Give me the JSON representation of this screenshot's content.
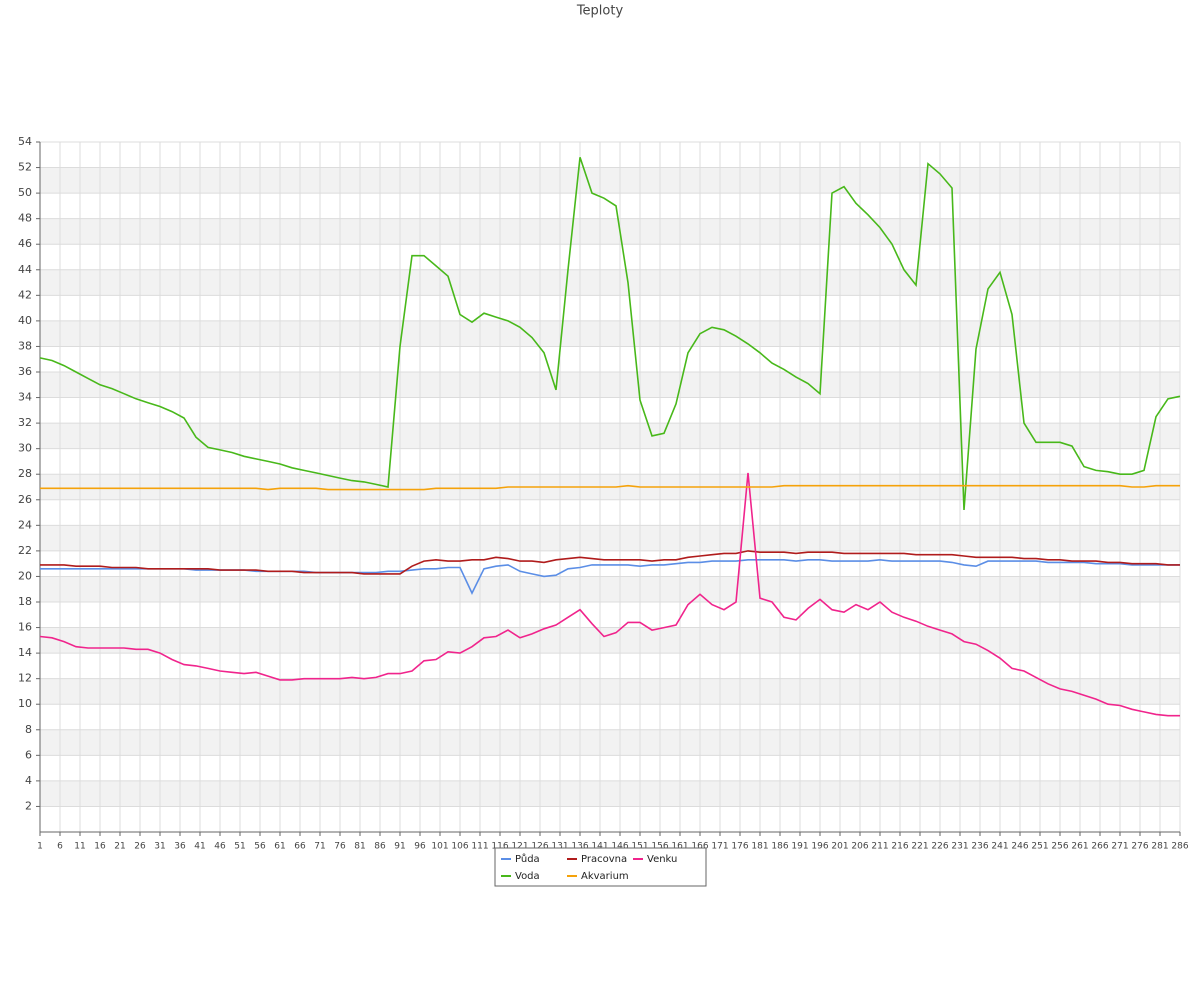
{
  "chart_data": {
    "type": "line",
    "title": "Teploty",
    "x": [
      1,
      4,
      7,
      10,
      13,
      16,
      19,
      22,
      25,
      28,
      31,
      34,
      37,
      40,
      43,
      46,
      49,
      52,
      55,
      58,
      61,
      64,
      67,
      70,
      73,
      76,
      79,
      82,
      85,
      88,
      91,
      94,
      97,
      100,
      103,
      106,
      109,
      112,
      115,
      118,
      121,
      124,
      127,
      130,
      133,
      136,
      139,
      142,
      145,
      148,
      151,
      154,
      157,
      160,
      163,
      166,
      169,
      172,
      175,
      178,
      181,
      184,
      187,
      190,
      193,
      196,
      199,
      202,
      205,
      208,
      211,
      214,
      217,
      220,
      223,
      226,
      229,
      232,
      235,
      238,
      241,
      244,
      247,
      250,
      253,
      256,
      259,
      262,
      265,
      268,
      271,
      274,
      277,
      280,
      283,
      286
    ],
    "xlim": [
      1,
      286
    ],
    "xticks": [
      1,
      6,
      11,
      16,
      21,
      26,
      31,
      36,
      41,
      46,
      51,
      56,
      61,
      66,
      71,
      76,
      81,
      86,
      91,
      96,
      101,
      106,
      111,
      116,
      121,
      126,
      131,
      136,
      141,
      146,
      151,
      156,
      161,
      166,
      171,
      176,
      181,
      186,
      191,
      196,
      201,
      206,
      211,
      216,
      221,
      226,
      231,
      236,
      241,
      246,
      251,
      256,
      261,
      266,
      271,
      276,
      281,
      286
    ],
    "ylim": [
      0,
      54
    ],
    "yticks": [
      2,
      4,
      6,
      8,
      10,
      12,
      14,
      16,
      18,
      20,
      22,
      24,
      26,
      28,
      30,
      32,
      34,
      36,
      38,
      40,
      42,
      44,
      46,
      48,
      50,
      52,
      54
    ],
    "grid": true,
    "series": [
      {
        "name": "Půda",
        "color": "#5b8ee6",
        "values": [
          20.6,
          20.6,
          20.6,
          20.6,
          20.6,
          20.6,
          20.6,
          20.6,
          20.6,
          20.6,
          20.6,
          20.6,
          20.6,
          20.5,
          20.5,
          20.5,
          20.5,
          20.5,
          20.4,
          20.4,
          20.4,
          20.4,
          20.4,
          20.3,
          20.3,
          20.3,
          20.3,
          20.3,
          20.3,
          20.4,
          20.4,
          20.5,
          20.6,
          20.6,
          20.7,
          20.7,
          18.7,
          20.6,
          20.8,
          20.9,
          20.4,
          20.2,
          20.0,
          20.1,
          20.6,
          20.7,
          20.9,
          20.9,
          20.9,
          20.9,
          20.8,
          20.9,
          20.9,
          21.0,
          21.1,
          21.1,
          21.2,
          21.2,
          21.2,
          21.3,
          21.3,
          21.3,
          21.3,
          21.2,
          21.3,
          21.3,
          21.2,
          21.2,
          21.2,
          21.2,
          21.3,
          21.2,
          21.2,
          21.2,
          21.2,
          21.2,
          21.1,
          20.9,
          20.8,
          21.2,
          21.2,
          21.2,
          21.2,
          21.2,
          21.1,
          21.1,
          21.1,
          21.1,
          21.0,
          21.0,
          21.0,
          20.9,
          20.9,
          20.9,
          20.9,
          20.9
        ]
      },
      {
        "name": "Pracovna",
        "color": "#b01c1c",
        "values": [
          20.9,
          20.9,
          20.9,
          20.8,
          20.8,
          20.8,
          20.7,
          20.7,
          20.7,
          20.6,
          20.6,
          20.6,
          20.6,
          20.6,
          20.6,
          20.5,
          20.5,
          20.5,
          20.5,
          20.4,
          20.4,
          20.4,
          20.3,
          20.3,
          20.3,
          20.3,
          20.3,
          20.2,
          20.2,
          20.2,
          20.2,
          20.8,
          21.2,
          21.3,
          21.2,
          21.2,
          21.3,
          21.3,
          21.5,
          21.4,
          21.2,
          21.2,
          21.1,
          21.3,
          21.4,
          21.5,
          21.4,
          21.3,
          21.3,
          21.3,
          21.3,
          21.2,
          21.3,
          21.3,
          21.5,
          21.6,
          21.7,
          21.8,
          21.8,
          22.0,
          21.9,
          21.9,
          21.9,
          21.8,
          21.9,
          21.9,
          21.9,
          21.8,
          21.8,
          21.8,
          21.8,
          21.8,
          21.8,
          21.7,
          21.7,
          21.7,
          21.7,
          21.6,
          21.5,
          21.5,
          21.5,
          21.5,
          21.4,
          21.4,
          21.3,
          21.3,
          21.2,
          21.2,
          21.2,
          21.1,
          21.1,
          21.0,
          21.0,
          21.0,
          20.9,
          20.9
        ]
      },
      {
        "name": "Venku",
        "color": "#f0248c",
        "values": [
          15.3,
          15.2,
          14.9,
          14.5,
          14.4,
          14.4,
          14.4,
          14.4,
          14.3,
          14.3,
          14.0,
          13.5,
          13.1,
          13.0,
          12.8,
          12.6,
          12.5,
          12.4,
          12.5,
          12.2,
          11.9,
          11.9,
          12.0,
          12.0,
          12.0,
          12.0,
          12.1,
          12.0,
          12.1,
          12.4,
          12.4,
          12.6,
          13.4,
          13.5,
          14.1,
          14.0,
          14.5,
          15.2,
          15.3,
          15.8,
          15.2,
          15.5,
          15.9,
          16.2,
          16.8,
          17.4,
          16.3,
          15.3,
          15.6,
          16.4,
          16.4,
          15.8,
          16.0,
          16.2,
          17.8,
          18.6,
          17.8,
          17.4,
          18.0,
          28.1,
          18.3,
          18.0,
          16.8,
          16.6,
          17.5,
          18.2,
          17.4,
          17.2,
          17.8,
          17.4,
          18.0,
          17.2,
          16.8,
          16.5,
          16.1,
          15.8,
          15.5,
          14.9,
          14.7,
          14.2,
          13.6,
          12.8,
          12.6,
          12.1,
          11.6,
          11.2,
          11.0,
          10.7,
          10.4,
          10.0,
          9.9,
          9.6,
          9.4,
          9.2,
          9.1,
          9.1
        ]
      },
      {
        "name": "Voda",
        "color": "#48b81a",
        "values": [
          37.1,
          36.9,
          36.5,
          36.0,
          35.5,
          35.0,
          34.7,
          34.3,
          33.9,
          33.6,
          33.3,
          32.9,
          32.4,
          30.9,
          30.1,
          29.9,
          29.7,
          29.4,
          29.2,
          29.0,
          28.8,
          28.5,
          28.3,
          28.1,
          27.9,
          27.7,
          27.5,
          27.4,
          27.2,
          27.0,
          38.0,
          45.1,
          45.1,
          44.3,
          43.5,
          40.5,
          39.9,
          40.6,
          40.3,
          40.0,
          39.5,
          38.7,
          37.5,
          34.6,
          44.0,
          52.8,
          50.0,
          49.6,
          49.0,
          43.0,
          33.8,
          31.0,
          31.2,
          33.5,
          37.5,
          39.0,
          39.5,
          39.3,
          38.8,
          38.2,
          37.5,
          36.7,
          36.2,
          35.6,
          35.1,
          34.3,
          50.0,
          50.5,
          49.2,
          48.3,
          47.3,
          46.0,
          44.0,
          42.8,
          52.3,
          51.5,
          50.4,
          25.2,
          37.8,
          42.5,
          43.8,
          40.5,
          32.0,
          30.5,
          30.5,
          30.5,
          30.2,
          28.6,
          28.3,
          28.2,
          28.0,
          28.0,
          28.3,
          32.5,
          33.9,
          34.1
        ]
      },
      {
        "name": "Akvarium",
        "color": "#f5a20a",
        "values": [
          26.9,
          26.9,
          26.9,
          26.9,
          26.9,
          26.9,
          26.9,
          26.9,
          26.9,
          26.9,
          26.9,
          26.9,
          26.9,
          26.9,
          26.9,
          26.9,
          26.9,
          26.9,
          26.9,
          26.8,
          26.9,
          26.9,
          26.9,
          26.9,
          26.8,
          26.8,
          26.8,
          26.8,
          26.8,
          26.8,
          26.8,
          26.8,
          26.8,
          26.9,
          26.9,
          26.9,
          26.9,
          26.9,
          26.9,
          27.0,
          27.0,
          27.0,
          27.0,
          27.0,
          27.0,
          27.0,
          27.0,
          27.0,
          27.0,
          27.1,
          27.0,
          27.0,
          27.0,
          27.0,
          27.0,
          27.0,
          27.0,
          27.0,
          27.0,
          27.0,
          27.0,
          27.0,
          27.1,
          27.1,
          27.1,
          27.1,
          27.1,
          27.1,
          27.1,
          27.1,
          27.1,
          27.1,
          27.1,
          27.1,
          27.1,
          27.1,
          27.1,
          27.1,
          27.1,
          27.1,
          27.1,
          27.1,
          27.1,
          27.1,
          27.1,
          27.1,
          27.1,
          27.1,
          27.1,
          27.1,
          27.1,
          27.0,
          27.0,
          27.1,
          27.1,
          27.1
        ]
      }
    ]
  }
}
